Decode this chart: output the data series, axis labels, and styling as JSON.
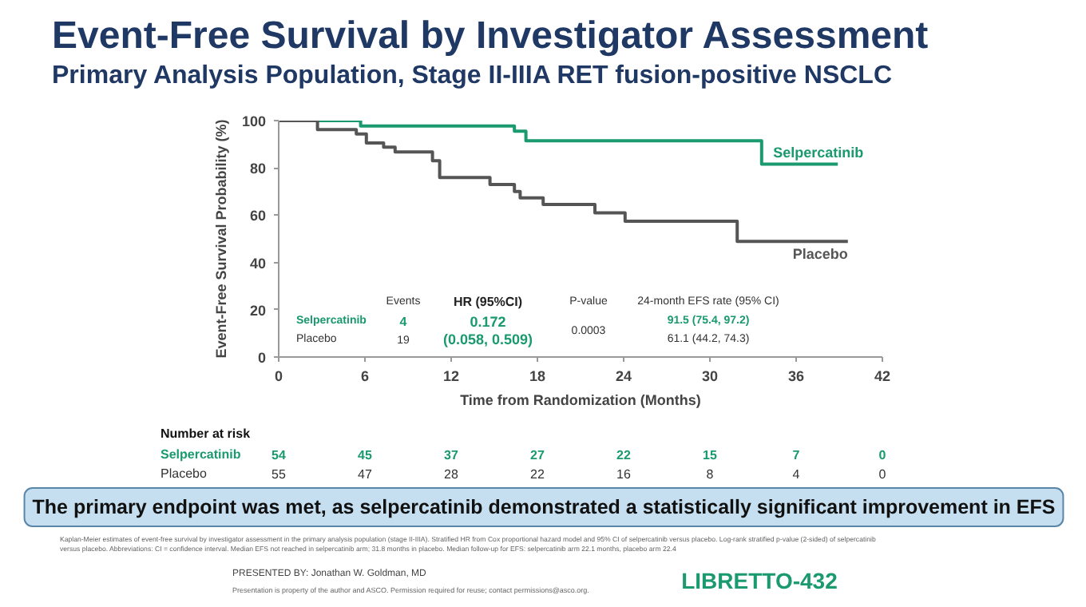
{
  "chart_data": {
    "type": "step",
    "title": "Event-Free Survival by Investigator Assessment",
    "subtitle": "Primary Analysis Population, Stage II-IIIA RET fusion-positive NSCLC",
    "xlabel": "Time from Randomization (Months)",
    "ylabel": "Event-Free Survival Probability (%)",
    "series": [
      {
        "name": "Selpercatinib",
        "color": "#1a9a6e",
        "x": [
          0,
          5.7,
          16.4,
          17.2,
          33.6,
          38.9
        ],
        "values": [
          100,
          97.7,
          95.5,
          91.5,
          81.6,
          81.6
        ]
      },
      {
        "name": "Placebo",
        "color": "#555555",
        "x": [
          0,
          2.7,
          5.4,
          6.1,
          7.3,
          8.1,
          10.7,
          11.2,
          14.7,
          16.4,
          16.8,
          18.4,
          22.0,
          24.1,
          31.9,
          39.6
        ],
        "values": [
          100,
          96.2,
          94.3,
          90.5,
          88.8,
          86.7,
          83,
          75.9,
          73,
          70,
          67.3,
          64.5,
          61,
          57.4,
          48.9,
          48.9
        ]
      }
    ],
    "xlim": [
      0,
      42
    ],
    "xticks": [
      0,
      6,
      12,
      18,
      24,
      30,
      36,
      42
    ],
    "ylim": [
      0,
      100
    ],
    "yticks": [
      0,
      20,
      40,
      60,
      80,
      100
    ],
    "grid": false,
    "annotations": [
      "Events",
      "HR (95%CI)",
      "P-value",
      "24-month EFS rate (95% CI)",
      "Selpercatinib",
      "Placebo",
      "4",
      "19",
      "0.172",
      "(0.058, 0.509)",
      "0.0003",
      "91.5 (75.4, 97.2)",
      "61.1 (44.2, 74.3)",
      "Number at risk",
      "Selpercatinib",
      "Placebo",
      "54",
      "45",
      "37",
      "27",
      "22",
      "15",
      "7",
      "0",
      "55",
      "47",
      "28",
      "22",
      "16",
      "8",
      "4",
      "0",
      "The primary endpoint was met, as selpercatinib demonstrated a statistically significant improvement in EFS",
      "Kaplan-Meier estimates of event-free survival by investigator assessment in the primary analysis population (stage II-IIIA). Stratified HR from Cox proportional hazard model and 95% CI of selpercatinib versus placebo. Log-rank stratified p-value (2-sided) of selpercatinib",
      "versus placebo. Abbreviations: CI = confidence interval. Median EFS not reached in selpercatinib arm; 31.8 months in placebo. Median follow-up for EFS: selpercatinib arm 22.1 months, placebo arm 22.4",
      "PRESENTED BY: Jonathan W. Goldman, MD",
      "Presentation is property of the author and ASCO. Permission required for reuse; contact permissions@asco.org.",
      "LIBRETTO-432"
    ]
  }
}
